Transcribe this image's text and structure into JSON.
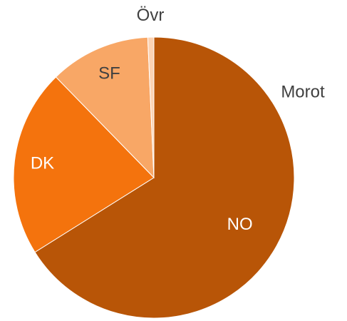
{
  "chart_data": {
    "type": "pie",
    "title": "Morot",
    "categories": [
      "NO",
      "DK",
      "SF",
      "Övr"
    ],
    "values": [
      66.1,
      21.6,
      11.6,
      0.7
    ],
    "colors": [
      "#b85507",
      "#f4730d",
      "#f8a766",
      "#fcd3b3"
    ]
  }
}
